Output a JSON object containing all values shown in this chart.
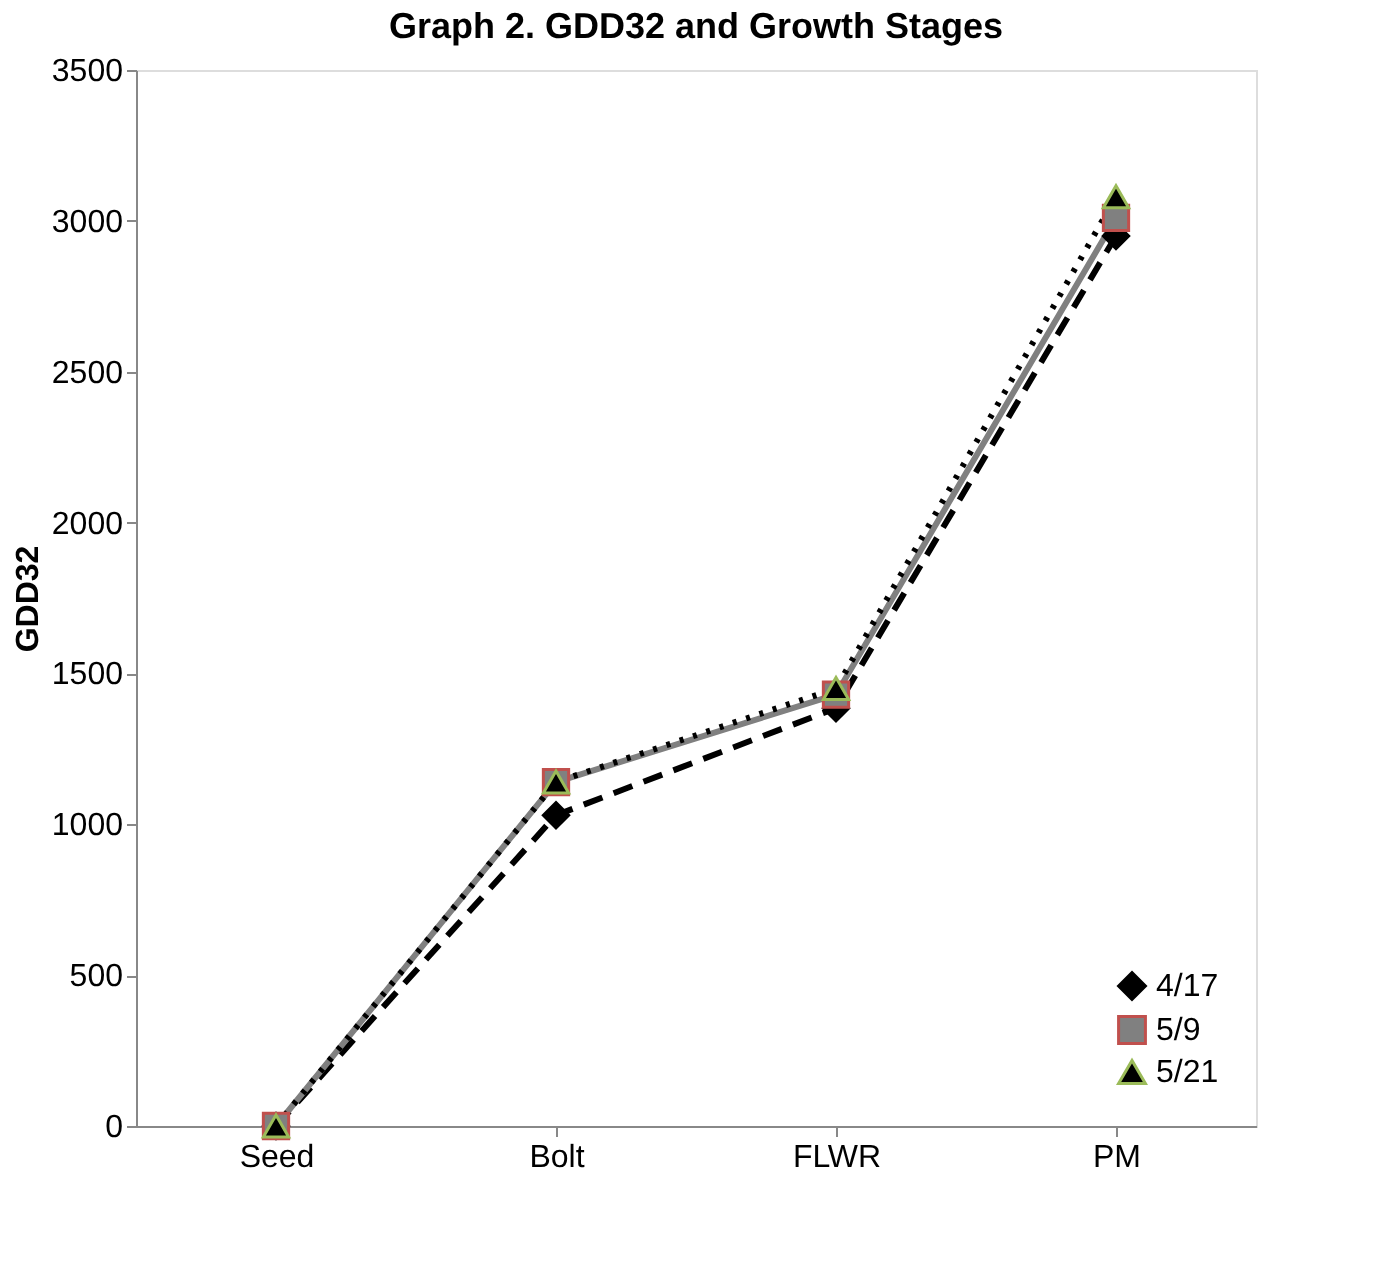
{
  "chart_data": {
    "type": "line",
    "title": "Graph 2. GDD32 and Growth Stages",
    "ylabel": "GDD32",
    "categories": [
      "Seed",
      "Bolt",
      "FLWR",
      "PM"
    ],
    "series": [
      {
        "name": "4/17",
        "color": "#000000",
        "line_style": "dashed",
        "marker": "diamond",
        "values": [
          0,
          1030,
          1385,
          2950
        ]
      },
      {
        "name": "5/9",
        "color": "#808080",
        "line_style": "solid",
        "marker": "square",
        "values": [
          0,
          1140,
          1430,
          3010
        ]
      },
      {
        "name": "5/21",
        "color": "#000000",
        "line_style": "dotted",
        "marker": "triangle",
        "values": [
          0,
          1140,
          1450,
          3080
        ]
      }
    ],
    "ylim": [
      0,
      3500
    ],
    "yticks": [
      0,
      500,
      1000,
      1500,
      2000,
      2500,
      3000,
      3500
    ],
    "grid": false,
    "legend": "bottom right"
  }
}
